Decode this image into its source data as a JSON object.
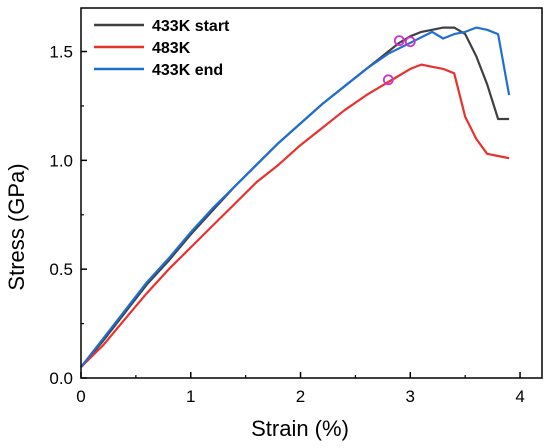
{
  "chart_data": {
    "type": "line",
    "xlabel": "Strain (%)",
    "ylabel": "Stress (GPa)",
    "xlim": [
      0,
      4.2
    ],
    "ylim": [
      0,
      1.7
    ],
    "xticks": [
      0,
      1,
      2,
      3,
      4
    ],
    "yticks": [
      0.0,
      0.5,
      1.0,
      1.5
    ],
    "xtick_labels": [
      "0",
      "1",
      "2",
      "3",
      "4"
    ],
    "ytick_labels": [
      "0.0",
      "0.5",
      "1.0",
      "1.5"
    ],
    "grid": false,
    "legend_position": "top-left",
    "series": [
      {
        "name": "433K start",
        "color": "#404040",
        "x": [
          0,
          0.2,
          0.4,
          0.6,
          0.8,
          1.0,
          1.2,
          1.4,
          1.6,
          1.8,
          2.0,
          2.2,
          2.4,
          2.6,
          2.8,
          2.9,
          3.0,
          3.1,
          3.2,
          3.3,
          3.4,
          3.5,
          3.6,
          3.7,
          3.8,
          3.9
        ],
        "y": [
          0.05,
          0.17,
          0.3,
          0.43,
          0.54,
          0.66,
          0.77,
          0.88,
          0.98,
          1.08,
          1.17,
          1.26,
          1.34,
          1.42,
          1.5,
          1.54,
          1.57,
          1.59,
          1.6,
          1.61,
          1.61,
          1.58,
          1.48,
          1.35,
          1.19,
          1.19
        ]
      },
      {
        "name": "483K",
        "color": "#e8322e",
        "x": [
          0,
          0.2,
          0.4,
          0.6,
          0.8,
          1.0,
          1.2,
          1.4,
          1.6,
          1.8,
          2.0,
          2.2,
          2.4,
          2.6,
          2.8,
          2.9,
          3.0,
          3.1,
          3.2,
          3.3,
          3.4,
          3.5,
          3.55,
          3.6,
          3.7,
          3.8,
          3.9
        ],
        "y": [
          0.05,
          0.15,
          0.27,
          0.39,
          0.5,
          0.6,
          0.7,
          0.8,
          0.9,
          0.98,
          1.07,
          1.15,
          1.23,
          1.3,
          1.36,
          1.39,
          1.42,
          1.44,
          1.43,
          1.42,
          1.4,
          1.2,
          1.15,
          1.1,
          1.03,
          1.02,
          1.01
        ]
      },
      {
        "name": "433K end",
        "color": "#1f6fd1",
        "x": [
          0,
          0.2,
          0.4,
          0.6,
          0.8,
          1.0,
          1.2,
          1.4,
          1.6,
          1.8,
          2.0,
          2.2,
          2.4,
          2.6,
          2.8,
          3.0,
          3.2,
          3.3,
          3.4,
          3.5,
          3.6,
          3.7,
          3.8,
          3.9
        ],
        "y": [
          0.05,
          0.18,
          0.31,
          0.44,
          0.55,
          0.67,
          0.78,
          0.88,
          0.98,
          1.08,
          1.17,
          1.26,
          1.34,
          1.42,
          1.49,
          1.54,
          1.59,
          1.56,
          1.58,
          1.59,
          1.61,
          1.6,
          1.58,
          1.3
        ]
      }
    ],
    "markers": [
      {
        "x": 2.8,
        "y": 1.37,
        "color": "#cc33cc"
      },
      {
        "x": 2.9,
        "y": 1.55,
        "color": "#cc33cc"
      },
      {
        "x": 3.0,
        "y": 1.545,
        "color": "#cc33cc"
      }
    ]
  }
}
